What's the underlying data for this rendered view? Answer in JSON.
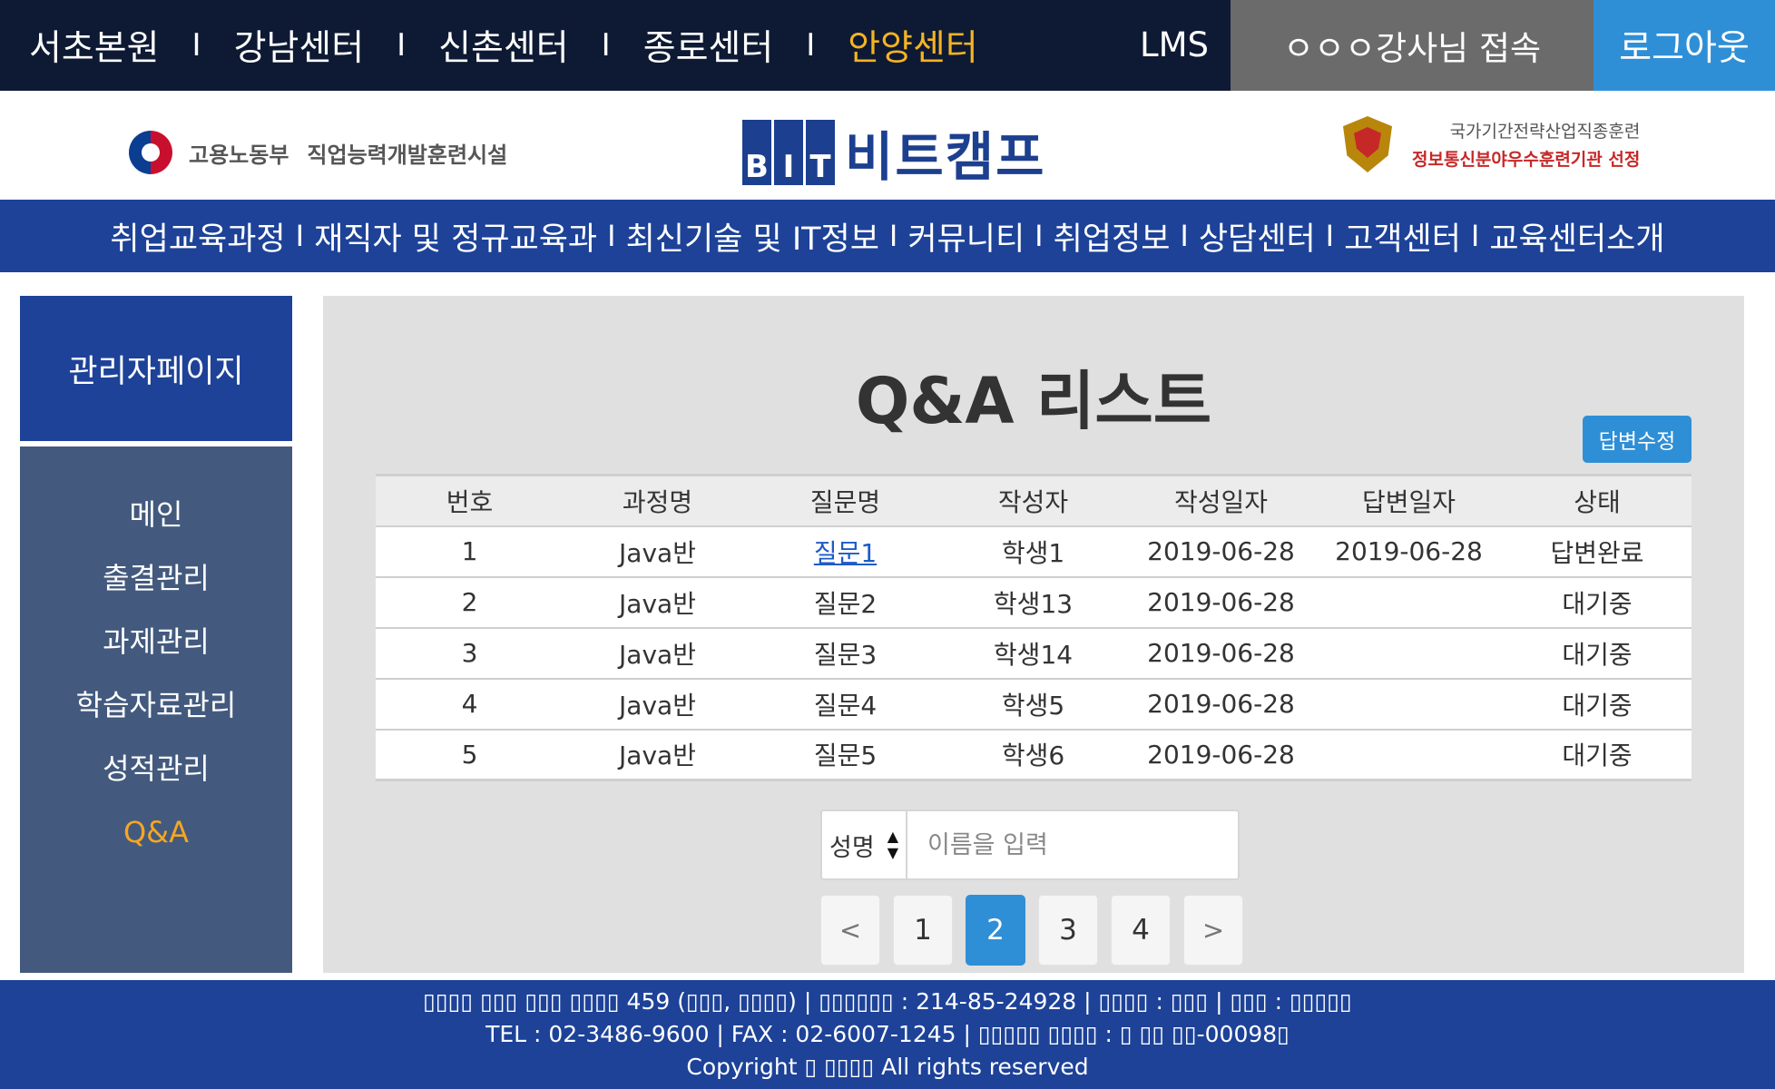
{
  "topbar": {
    "centers": [
      {
        "label": "서초본원",
        "active": false
      },
      {
        "label": "강남센터",
        "active": false
      },
      {
        "label": "신촌센터",
        "active": false
      },
      {
        "label": "종로센터",
        "active": false
      },
      {
        "label": "안양센터",
        "active": true
      }
    ],
    "separator": "I",
    "lms_label": "LMS",
    "greeting": "ㅇㅇㅇ강사님 접속",
    "logout_label": "로그아웃"
  },
  "logos": {
    "moel_name": "고용노동부",
    "moel_desc": "직업능력개발훈련시설",
    "bit_letters": [
      "B",
      "I",
      "T"
    ],
    "bit_kor": "비트캠프",
    "award_line1": "국가기간전략산업직종훈련",
    "award_line2": "정보통신분야우수훈련기관 선정"
  },
  "nav": {
    "items": [
      "취업교육과정",
      "재직자 및 정규교육과",
      "최신기술 및 IT정보",
      "커뮤니티",
      "취업정보",
      "상담센터",
      "고객센터",
      "교육센터소개"
    ],
    "separator": "I"
  },
  "sidebar": {
    "title": "관리자페이지",
    "items": [
      {
        "label": "메인",
        "active": false
      },
      {
        "label": "출결관리",
        "active": false
      },
      {
        "label": "과제관리",
        "active": false
      },
      {
        "label": "학습자료관리",
        "active": false
      },
      {
        "label": "성적관리",
        "active": false
      },
      {
        "label": "Q&A",
        "active": true
      }
    ]
  },
  "main": {
    "title": "Q&A 리스트",
    "edit_button": "답변수정",
    "table": {
      "headers": [
        "번호",
        "과정명",
        "질문명",
        "작성자",
        "작성일자",
        "답변일자",
        "상태"
      ],
      "rows": [
        [
          "1",
          "Java반",
          "질문1",
          "학생1",
          "2019-06-28",
          "2019-06-28",
          "답변완료"
        ],
        [
          "2",
          "Java반",
          "질문2",
          "학생13",
          "2019-06-28",
          "",
          "대기중"
        ],
        [
          "3",
          "Java반",
          "질문3",
          "학생14",
          "2019-06-28",
          "",
          "대기중"
        ],
        [
          "4",
          "Java반",
          "질문4",
          "학생5",
          "2019-06-28",
          "",
          "대기중"
        ],
        [
          "5",
          "Java반",
          "질문5",
          "학생6",
          "2019-06-28",
          "",
          "대기중"
        ]
      ]
    },
    "search": {
      "select_value": "성명",
      "placeholder": "이름을 입력"
    },
    "pagination": {
      "prev": "<",
      "pages": [
        "1",
        "2",
        "3",
        "4"
      ],
      "current": "2",
      "next": ">"
    }
  },
  "footer": {
    "lines": [
      "▯▯▯▯ ▯▯▯ ▯▯▯ ▯▯▯▯ 459 (▯▯▯, ▯▯▯▯) | ▯▯▯▯▯▯ : 214-85-24928 | ▯▯▯▯ : ▯▯▯ | ▯▯▯ : ▯▯▯▯▯",
      "TEL : 02-3486-9600 | FAX : 02-6007-1245 | ▯▯▯▯▯ ▯▯▯▯ : ▯ ▯▯ ▯▯-00098▯",
      "Copyright ▯ ▯▯▯▯ All rights reserved"
    ]
  },
  "colors": {
    "topbar_bg": "#0e1a33",
    "accent_yellow": "#f5b324",
    "brand_blue": "#1d4298",
    "button_blue": "#2f8fd6",
    "sidebar_menu_bg": "#435a7e",
    "sidebar_active": "#f5a623"
  }
}
